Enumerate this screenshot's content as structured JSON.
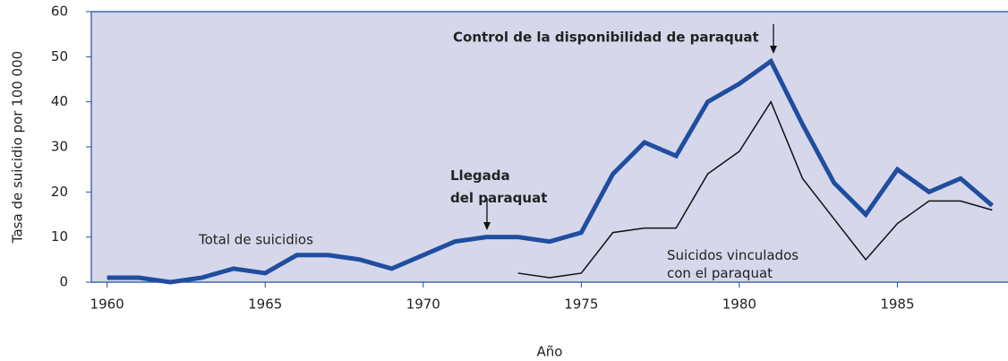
{
  "chart_data": {
    "type": "line",
    "y_label": "Tasa de suicidio por 100 000",
    "x_label": "Año",
    "x": [
      1960,
      1961,
      1962,
      1963,
      1964,
      1965,
      1966,
      1967,
      1968,
      1969,
      1970,
      1971,
      1972,
      1973,
      1974,
      1975,
      1976,
      1977,
      1978,
      1979,
      1980,
      1981,
      1982,
      1983,
      1984,
      1985,
      1986,
      1987,
      1988
    ],
    "series": [
      {
        "name": "Total de suicidios",
        "color": "#1f4e9f",
        "values": [
          1,
          1,
          0,
          1,
          3,
          2,
          6,
          6,
          5,
          3,
          6,
          9,
          10,
          10,
          9,
          11,
          24,
          31,
          28,
          40,
          44,
          49,
          35,
          22,
          15,
          25,
          20,
          23,
          17
        ]
      },
      {
        "name": [
          "Suicidos vinculados",
          "con el paraquat"
        ],
        "color": "#111111",
        "values": [
          null,
          null,
          null,
          null,
          null,
          null,
          null,
          null,
          null,
          null,
          null,
          null,
          null,
          2,
          1,
          2,
          11,
          12,
          12,
          24,
          29,
          40,
          23,
          14,
          5,
          13,
          18,
          18,
          16
        ]
      }
    ],
    "annotations": [
      [
        "Llegada",
        "del paraquat"
      ],
      [
        "Control de la disponibilidad de paraquat"
      ]
    ],
    "xlim": [
      1959.5,
      1988.5
    ],
    "ylim": [
      0,
      60
    ],
    "xticks": [
      1960,
      1965,
      1970,
      1975,
      1980,
      1985
    ],
    "yticks": [
      0,
      10,
      20,
      30,
      40,
      50,
      60
    ],
    "background": "#d6d7eb"
  }
}
